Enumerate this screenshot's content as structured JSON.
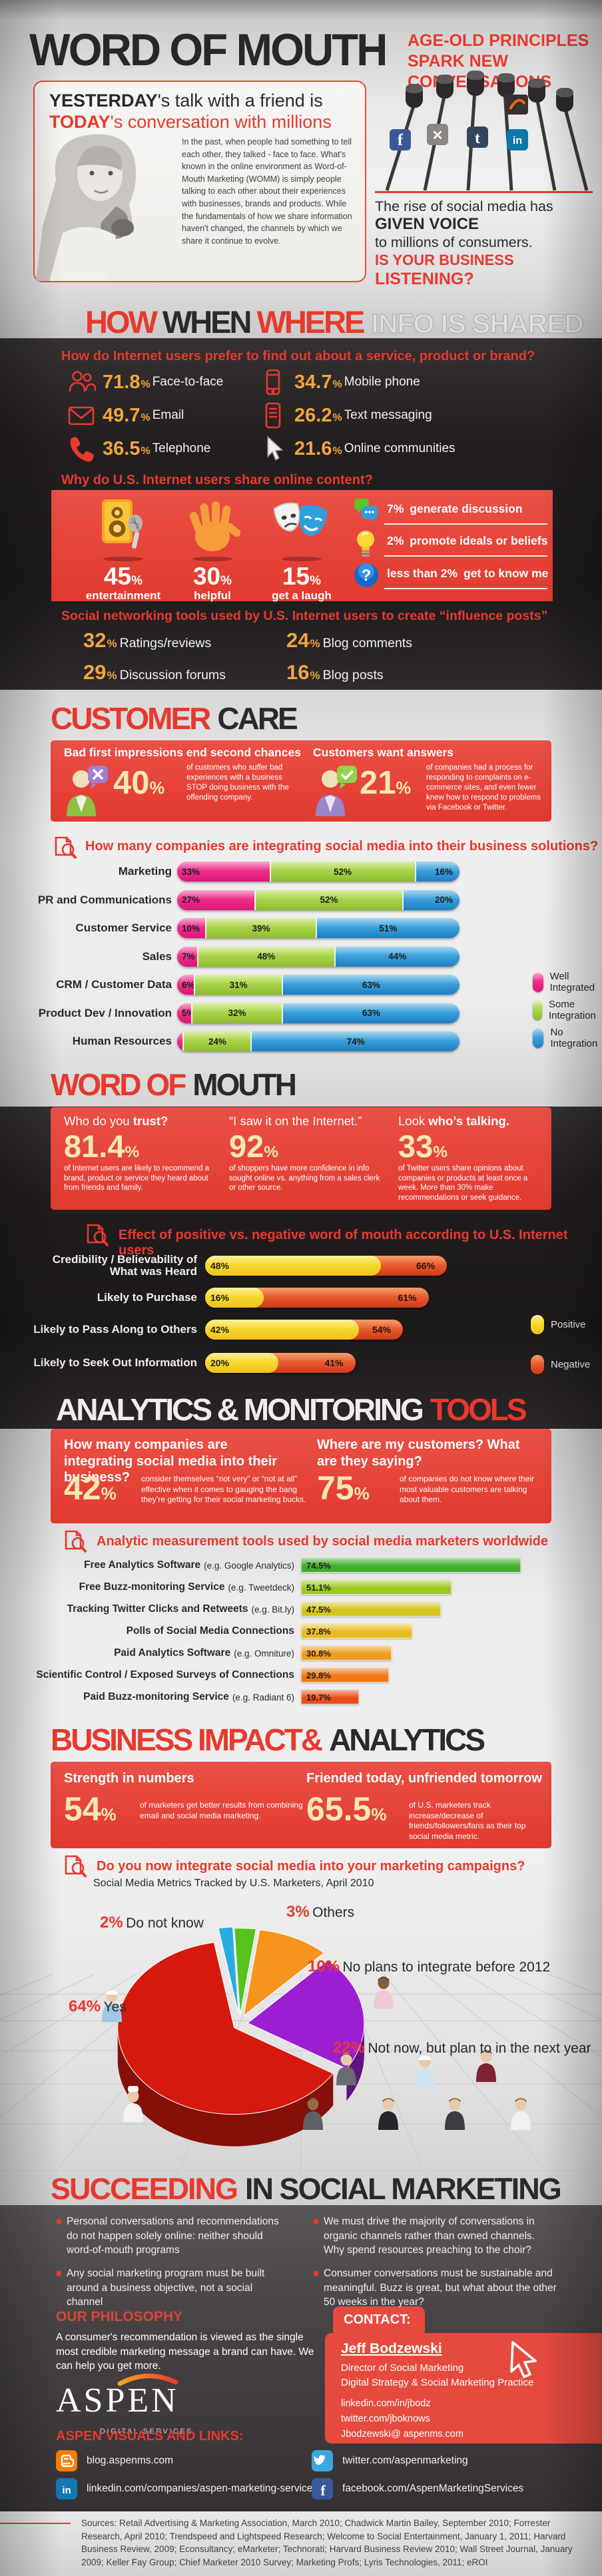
{
  "accent": {
    "red": "#e8392e",
    "band_red": "#e6493e",
    "orange": "#f0a63e",
    "cream": "#f6e7b4"
  },
  "header": {
    "title": "WORD OF MOUTH",
    "tag_l1_pre": "AGE-",
    "tag_l1_bold": "OLD",
    "tag_l1_post": " PRINCIPLES",
    "tag_l2_pre": "SPARK ",
    "tag_l2_bold": "NEW",
    "tag_l2_post": " CONVERSATIONS"
  },
  "intro": {
    "h1_bold": "YESTERDAY",
    "h1_rest": "'s talk with a friend is",
    "h2_bold": "TODAY",
    "h2_rest": "'s conversation with millions",
    "body": "In the past, when people had something to tell each other, they talked - face to face. What's known in the online environment as Word-of-Mouth Marketing (WOMM) is simply people talking to each other about their experiences with businesses, brands and products. While the fundamentals of how we share information haven't changed, the channels by which we share it continue to evolve.",
    "rise_l1": "The rise of social media has",
    "rise_l2": "GIVEN VOICE",
    "rise_l3": "to millions of consumers.",
    "rise_l4": "IS YOUR BUSINESS",
    "rise_l5": "LISTENING?"
  },
  "how_section": {
    "t1": "HOW",
    "t2": "WHEN",
    "t3": "WHERE",
    "t4": "INFO IS SHARED",
    "q_prefer": "How do Internet users prefer to find out about a service, product or brand?",
    "prefer_stats": [
      {
        "icon": "people-icon",
        "value": "71.8",
        "label": "Face-to-face"
      },
      {
        "icon": "email-icon",
        "value": "49.7",
        "label": "Email"
      },
      {
        "icon": "telephone-icon",
        "value": "36.5",
        "label": "Telephone"
      },
      {
        "icon": "mobile-icon",
        "value": "34.7",
        "label": "Mobile phone"
      },
      {
        "icon": "sms-icon",
        "value": "26.2",
        "label": "Text messaging"
      },
      {
        "icon": "cursor-icon",
        "value": "21.6",
        "label": "Online communities"
      }
    ],
    "q_share": "Why do U.S. Internet users share online content?",
    "share_stats": [
      {
        "icon": "speaker-icon",
        "value": "45",
        "label": "entertainment"
      },
      {
        "icon": "hand-icon",
        "value": "30",
        "label": "helpful"
      },
      {
        "icon": "masks-icon",
        "value": "15",
        "label": "get a laugh"
      }
    ],
    "share_side": [
      {
        "icon": "chat-icon",
        "value": "7%",
        "label": "generate discussion"
      },
      {
        "icon": "bulb-icon",
        "value": "2%",
        "label": "promote ideals or beliefs"
      },
      {
        "icon": "question-icon",
        "value": "less than 2%",
        "label": "get to know me"
      }
    ],
    "q_influence": "Social networking tools used by U.S. Internet users to create “influence posts”",
    "influence_stats": [
      {
        "value": "32",
        "label": "Ratings/reviews"
      },
      {
        "value": "24",
        "label": "Blog comments"
      },
      {
        "value": "29",
        "label": "Discussion forums"
      },
      {
        "value": "16",
        "label": "Blog posts"
      }
    ]
  },
  "customer_care": {
    "t1": "CUSTOMER",
    "t2": "CARE",
    "left_heading": "Bad first impressions end second chances",
    "left_value": "40",
    "left_body": "of customers who suffer bad experiences with a business STOP doing business with the offending company.",
    "right_heading": "Customers want answers",
    "right_value": "21",
    "right_body": "of companies had a process for responding to complaints on e-commerce sites, and even fewer knew how to respond to problems via Facebook or Twitter."
  },
  "wom_section": {
    "t1": "WORD OF",
    "t2": "MOUTH",
    "cols": [
      {
        "head_pre": "Who do you ",
        "head_bold": "trust?",
        "value": "81.4",
        "body": "of Internet users are likely to recommend a brand, product or service they heard about from friends and family."
      },
      {
        "head_pre": "“I saw it on the Internet.”",
        "head_bold": "",
        "value": "92",
        "body": "of shoppers have more confidence in info sought online vs. anything from a sales clerk or other source."
      },
      {
        "head_pre": "Look ",
        "head_bold": "who’s talking.",
        "value": "33",
        "body": "of Twitter users share opinions about companies or products at least once a week. More than 30% make recommendations or seek guidance."
      }
    ]
  },
  "analytics_section": {
    "t1": "ANALYTICS & MONITORING",
    "t2": "TOOLS",
    "left_heading": "How many companies are integrating social media into their business?",
    "left_value": "42",
    "left_body": "consider themselves “not very” or “not at all” effective when it comes to gauging the bang they’re getting for their social marketing bucks.",
    "right_heading": "Where are my customers? What are they saying?",
    "right_value": "75",
    "right_body": "of companies do not know where their most valuable customers are talking about them."
  },
  "business_section": {
    "t1": "BUSINESS IMPACT&",
    "t2": "ANALYTICS",
    "left_heading": "Strength in numbers",
    "left_value": "54",
    "left_body": "of marketers get better results from combining email and social media marketing.",
    "right_heading": "Friended today, unfriended tomorrow",
    "right_value": "65.5",
    "right_body": "of U.S. marketers track increase/decrease of friends/followers/fans as their top social media metric."
  },
  "succeeding": {
    "t1": "SUCCEEDING",
    "t2": "IN SOCIAL MARKETING",
    "bullets": [
      "Personal conversations and recommendations do not happen solely online: neither should word-of-mouth programs",
      "Any social marketing program must be built around a business objective, not a social channel",
      "We must drive the majority of conversations in organic channels rather than owned channels. Why spend resources preaching to the choir?",
      "Consumer conversations must be sustainable and meaningful. Buzz is great, but what about the other 50 weeks in the year?"
    ],
    "philosophy_title": "OUR PHILOSOPHY",
    "philosophy_body": "A consumer's recommendation is viewed as the single most credible marketing message a brand can have. We can help you get more.",
    "logo_text": "ASPEN",
    "logo_sub": "DIGITAL SERVICES",
    "contact_label": "CONTACT:",
    "contact_name": "Jeff Bodzewski",
    "contact_role1": "Director of Social Marketing",
    "contact_role2": "Digital Strategy & Social Marketing Practice",
    "contact_links": [
      "linkedin.com/in/jbodz",
      "twitter.com/jboknows",
      "Jbodzewski@ aspenms.com"
    ],
    "visuals_title": "ASPEN VISUALS AND LINKS:",
    "social_links": [
      {
        "icon": "blogger-icon",
        "label": "blog.aspenms.com"
      },
      {
        "icon": "twitter-icon",
        "label": "twitter.com/aspenmarketing"
      },
      {
        "icon": "linkedin-icon",
        "label": "linkedin.com/companies/aspen-marketing-services"
      },
      {
        "icon": "facebook-icon",
        "label": "facebook.com/AspenMarketingServices"
      }
    ]
  },
  "footer": {
    "sources": "Sources: Retail Advertising & Marketing Association, March 2010; Chadwick Martin Bailey, September 2010; Forrester Research, April 2010; Trendspeed and Lightspeed Research; Welcome to Social Entertainment, January 1, 2011; Harvard Business Review, 2009; Econsultancy; eMarketer; Technorati; Harvard Business Review 2010; Wall Street Journal, January 2009; Keller Fay Group; Chief Marketer 2010 Survey; Marketing Profs; Lyris Technologies, 2011; eROI"
  },
  "chart_data": [
    {
      "type": "bar",
      "stacked": true,
      "title": "How many companies are integrating social media into their business solutions?",
      "categories": [
        "Marketing",
        "PR and Communications",
        "Customer Service",
        "Sales",
        "CRM / Customer Data",
        "Product Dev / Innovation",
        "Human Resources"
      ],
      "series": [
        {
          "name": "Well Integrated",
          "values": [
            33,
            27,
            10,
            7,
            6,
            5,
            2
          ]
        },
        {
          "name": "Some Integration",
          "values": [
            52,
            52,
            39,
            48,
            31,
            32,
            24
          ]
        },
        {
          "name": "No Integration",
          "values": [
            16,
            20,
            51,
            44,
            63,
            63,
            74
          ]
        }
      ],
      "unit": "%",
      "legend_position": "right-bottom",
      "colors": [
        "#ee2d8a",
        "#a8d44a",
        "#3aa0dc"
      ]
    },
    {
      "type": "bar",
      "title": "Effect of positive vs. negative word of mouth according to U.S. Internet users",
      "categories": [
        "Credibility / Believability of What was Heard",
        "Likely to Purchase",
        "Likely to Pass Along to Others",
        "Likely to Seek Out Information"
      ],
      "series": [
        {
          "name": "Positive",
          "values": [
            48,
            16,
            42,
            20
          ]
        },
        {
          "name": "Negative",
          "values": [
            66,
            61,
            54,
            41
          ]
        }
      ],
      "unit": "%",
      "colors": [
        "#f7d92e",
        "#e8542a"
      ]
    },
    {
      "type": "bar",
      "title": "Analytic measurement tools used by social media marketers worldwide",
      "categories": [
        {
          "name": "Free Analytics Software",
          "note": "(e.g. Google Analytics)"
        },
        {
          "name": "Free Buzz-monitoring Service",
          "note": "(e.g. Tweetdeck)"
        },
        {
          "name": "Tracking Twitter Clicks and Retweets",
          "note": "(e.g. Bit.ly)"
        },
        {
          "name": "Polls of Social Media Connections",
          "note": ""
        },
        {
          "name": "Paid Analytics Software",
          "note": "(e.g. Omniture)"
        },
        {
          "name": "Scientific Control / Exposed Surveys of Connections",
          "note": ""
        },
        {
          "name": "Paid Buzz-monitoring Service",
          "note": "(e.g. Radiant 6)"
        }
      ],
      "values": [
        74.5,
        51.1,
        47.5,
        37.8,
        30.8,
        29.8,
        19.7
      ],
      "unit": "%",
      "colors": [
        "#3fae28",
        "#9cc821",
        "#d6c31d",
        "#e8bb1e",
        "#ef9c1c",
        "#ef7716",
        "#e94e18"
      ]
    },
    {
      "type": "pie",
      "title": "Do you now integrate social media into your marketing campaigns?",
      "subtitle": "Social Media Metrics Tracked by U.S. Marketers, April 2010",
      "labels": [
        "Yes",
        "Not now, but plan to in the next year",
        "No plans to integrate before 2012",
        "Others",
        "Do not know"
      ],
      "values": [
        64,
        22,
        10,
        3,
        2
      ],
      "colors": [
        "#d6190e",
        "#9b1fd0",
        "#f7941e",
        "#56c21e",
        "#29abe2"
      ]
    }
  ]
}
